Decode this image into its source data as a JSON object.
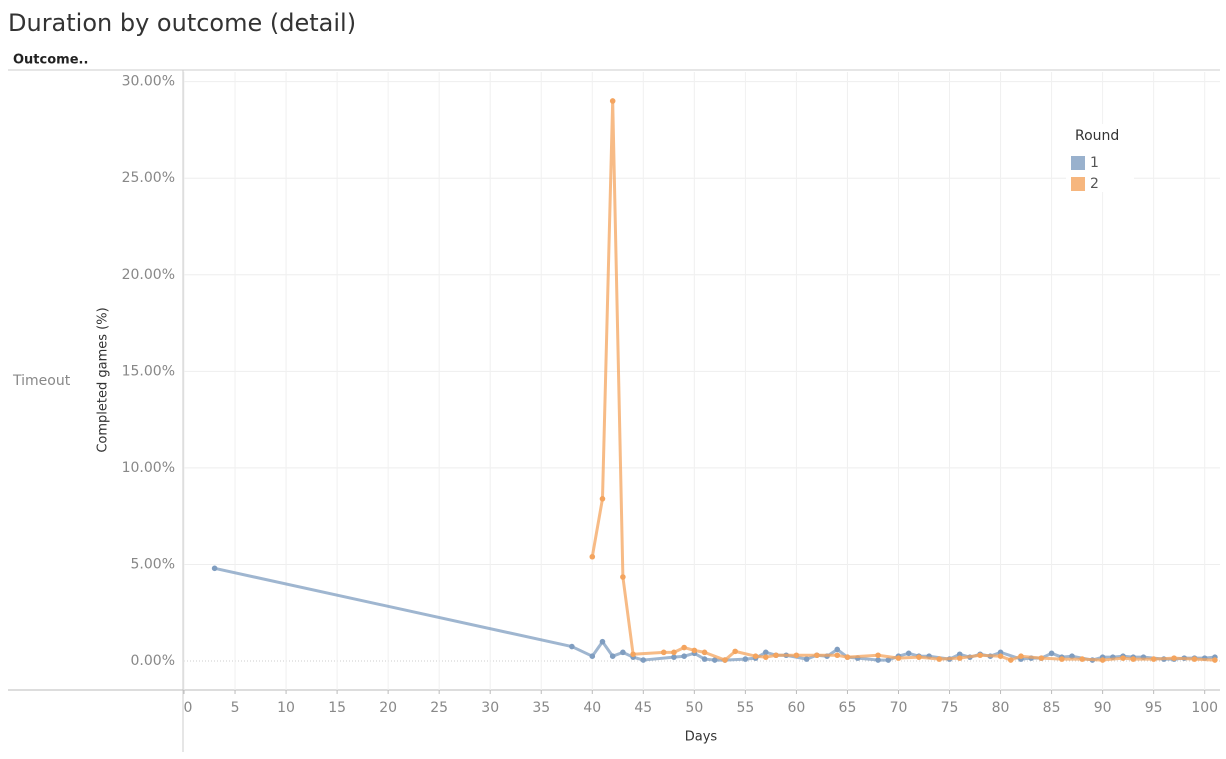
{
  "chart_data": {
    "type": "line",
    "title": "Duration by outcome (detail)",
    "row_header": "Outcome..",
    "row_label": "Timeout",
    "x_label": "Days",
    "y_label": "Completed games (%)",
    "legend_title": "Round",
    "legend_position": "upper right",
    "grid": true,
    "xlim": [
      0,
      101.5
    ],
    "ylim": [
      -1.5,
      30.5
    ],
    "xticks": [
      0,
      5,
      10,
      15,
      20,
      25,
      30,
      35,
      40,
      45,
      50,
      55,
      60,
      65,
      70,
      75,
      80,
      85,
      90,
      95,
      100
    ],
    "yticks": [
      {
        "value": 0,
        "label": "0.00%"
      },
      {
        "value": 5,
        "label": "5.00%"
      },
      {
        "value": 10,
        "label": "10.00%"
      },
      {
        "value": 15,
        "label": "15.00%"
      },
      {
        "value": 20,
        "label": "20.00%"
      },
      {
        "value": 25,
        "label": "25.00%"
      },
      {
        "value": 30,
        "label": "30.00%"
      }
    ],
    "series": [
      {
        "name": "1",
        "color": "#7f9dc0",
        "x": [
          3,
          38,
          40,
          41,
          42,
          43,
          44,
          45,
          48,
          49,
          50,
          51,
          52,
          53,
          55,
          56,
          57,
          58,
          59,
          61,
          62,
          63,
          64,
          65,
          66,
          68,
          69,
          70,
          71,
          72,
          73,
          75,
          76,
          77,
          78,
          79,
          80,
          82,
          83,
          84,
          85,
          86,
          87,
          89,
          90,
          91,
          92,
          93,
          94,
          96,
          97,
          98,
          99,
          100,
          101
        ],
        "values": [
          4.8,
          0.75,
          0.25,
          1.0,
          0.25,
          0.45,
          0.2,
          0.05,
          0.2,
          0.25,
          0.4,
          0.1,
          0.05,
          0.05,
          0.1,
          0.15,
          0.45,
          0.3,
          0.3,
          0.1,
          0.3,
          0.25,
          0.6,
          0.2,
          0.15,
          0.05,
          0.05,
          0.25,
          0.4,
          0.25,
          0.25,
          0.1,
          0.35,
          0.2,
          0.35,
          0.25,
          0.45,
          0.1,
          0.15,
          0.15,
          0.4,
          0.2,
          0.25,
          0.05,
          0.2,
          0.2,
          0.25,
          0.2,
          0.2,
          0.1,
          0.1,
          0.15,
          0.15,
          0.15,
          0.2
        ]
      },
      {
        "name": "2",
        "color": "#f4a45e",
        "x": [
          40,
          41,
          42,
          43,
          44,
          47,
          48,
          49,
          50,
          51,
          53,
          54,
          56,
          57,
          58,
          60,
          62,
          64,
          65,
          68,
          70,
          72,
          74,
          76,
          78,
          80,
          81,
          82,
          84,
          86,
          88,
          90,
          92,
          93,
          95,
          97,
          99,
          101
        ],
        "values": [
          5.4,
          8.4,
          29.0,
          4.35,
          0.35,
          0.45,
          0.45,
          0.7,
          0.55,
          0.45,
          0.05,
          0.5,
          0.25,
          0.2,
          0.3,
          0.3,
          0.3,
          0.3,
          0.2,
          0.3,
          0.15,
          0.2,
          0.1,
          0.15,
          0.3,
          0.25,
          0.05,
          0.25,
          0.15,
          0.1,
          0.1,
          0.05,
          0.15,
          0.1,
          0.1,
          0.15,
          0.1,
          0.05
        ]
      }
    ]
  }
}
